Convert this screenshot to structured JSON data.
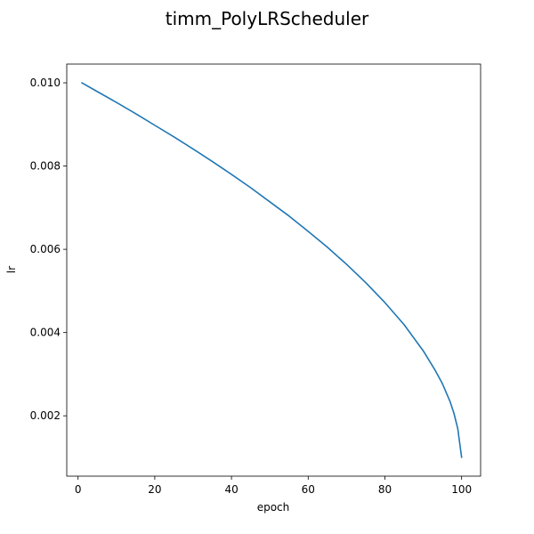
{
  "chart_data": {
    "type": "line",
    "title": "timm_PolyLRScheduler",
    "xlabel": "epoch",
    "ylabel": "lr",
    "xlim": [
      -2.95,
      104.95
    ],
    "ylim": [
      0.00055,
      0.01045
    ],
    "xticks": [
      0,
      20,
      40,
      60,
      80,
      100
    ],
    "xtick_labels": [
      "0",
      "20",
      "40",
      "60",
      "80",
      "100"
    ],
    "yticks": [
      0.002,
      0.004,
      0.006,
      0.008,
      0.01
    ],
    "ytick_labels": [
      "0.002",
      "0.004",
      "0.006",
      "0.008",
      "0.010"
    ],
    "grid": false,
    "line_color": "#1f77b4",
    "series": [
      {
        "x": [
          1,
          5,
          10,
          15,
          20,
          25,
          30,
          35,
          40,
          45,
          50,
          55,
          60,
          65,
          70,
          75,
          80,
          85,
          90,
          93,
          95,
          97,
          98,
          99,
          100
        ],
        "values": [
          0.01,
          0.00979,
          0.00953,
          0.00926,
          0.00898,
          0.0087,
          0.00841,
          0.00811,
          0.0078,
          0.00748,
          0.00714,
          0.0068,
          0.00643,
          0.00605,
          0.00564,
          0.0052,
          0.00472,
          0.00419,
          0.00356,
          0.00311,
          0.00277,
          0.00234,
          0.00206,
          0.00169,
          0.001
        ]
      }
    ]
  }
}
